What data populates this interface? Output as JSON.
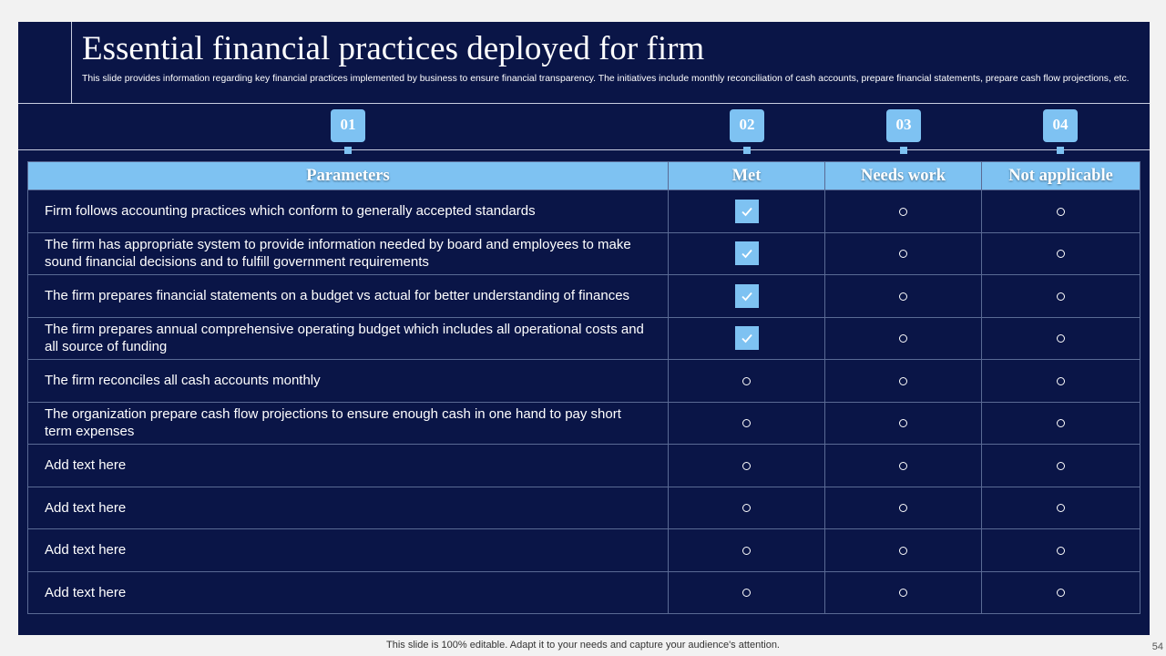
{
  "header": {
    "title": "Essential financial practices deployed for firm",
    "subtitle": "This slide provides information regarding key financial practices implemented by business to ensure financial transparency. The initiatives include monthly reconciliation of cash accounts, prepare financial statements, prepare cash flow projections, etc."
  },
  "badges": [
    "01",
    "02",
    "03",
    "04"
  ],
  "table": {
    "columns": [
      "Parameters",
      "Met",
      "Needs work",
      "Not applicable"
    ],
    "rows": [
      {
        "parameter": "Firm follows accounting practices which conform to generally accepted standards",
        "met": true
      },
      {
        "parameter": "The firm has appropriate system to provide information needed by board and employees to make sound financial decisions and to fulfill government requirements",
        "met": true
      },
      {
        "parameter": "The firm prepares financial statements on a budget vs actual for better understanding of finances",
        "met": true
      },
      {
        "parameter": "The firm prepares annual comprehensive operating budget which includes all operational costs and all source of funding",
        "met": true
      },
      {
        "parameter": "The firm reconciles all cash accounts monthly",
        "met": false
      },
      {
        "parameter": "The organization prepare cash flow projections to ensure enough cash in one hand to pay short term expenses",
        "met": false
      },
      {
        "parameter": "Add text here",
        "met": false
      },
      {
        "parameter": "Add text here",
        "met": false
      },
      {
        "parameter": "Add text here",
        "met": false
      },
      {
        "parameter": "Add text here",
        "met": false
      }
    ]
  },
  "footer": {
    "text": "This slide is 100% editable. Adapt it to your needs and capture your audience's attention.",
    "page_number": "54"
  },
  "icons": {
    "met": "checkbox-checked-icon",
    "other": "empty-circle-icon"
  },
  "colors": {
    "background": "#0a1547",
    "accent": "#7ec2f2",
    "border": "#5a6a94"
  }
}
